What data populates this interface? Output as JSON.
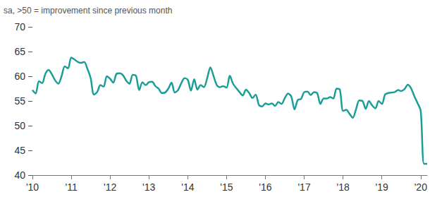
{
  "chart_data": {
    "type": "line",
    "subtitle": "sa, >50 = improvement since previous month",
    "categories": [
      "'10",
      null,
      null,
      null,
      null,
      null,
      null,
      null,
      null,
      null,
      null,
      null,
      "'11",
      null,
      null,
      null,
      null,
      null,
      null,
      null,
      null,
      null,
      null,
      null,
      "'12",
      null,
      null,
      null,
      null,
      null,
      null,
      null,
      null,
      null,
      null,
      null,
      "'13",
      null,
      null,
      null,
      null,
      null,
      null,
      null,
      null,
      null,
      null,
      null,
      "'14",
      null,
      null,
      null,
      null,
      null,
      null,
      null,
      null,
      null,
      null,
      null,
      "'15",
      null,
      null,
      null,
      null,
      null,
      null,
      null,
      null,
      null,
      null,
      null,
      "'16",
      null,
      null,
      null,
      null,
      null,
      null,
      null,
      null,
      null,
      null,
      null,
      "'17",
      null,
      null,
      null,
      null,
      null,
      null,
      null,
      null,
      null,
      null,
      null,
      "'18",
      null,
      null,
      null,
      null,
      null,
      null,
      null,
      null,
      null,
      null,
      null,
      "'19",
      null,
      null,
      null,
      null,
      null,
      null,
      null,
      null,
      null,
      null,
      null,
      "'20",
      null,
      null
    ],
    "values": [
      57.2,
      56.5,
      59.0,
      58.6,
      60.5,
      61.3,
      60.4,
      59.2,
      58.5,
      60.0,
      62.0,
      61.6,
      63.8,
      63.4,
      62.9,
      62.7,
      62.9,
      61.5,
      59.6,
      56.3,
      56.8,
      58.2,
      57.9,
      60.0,
      59.5,
      58.7,
      60.5,
      60.6,
      60.2,
      59.1,
      58.5,
      60.3,
      60.1,
      57.2,
      58.8,
      58.2,
      58.8,
      58.9,
      58.0,
      57.5,
      56.6,
      56.7,
      57.5,
      58.7,
      56.7,
      57.2,
      58.6,
      59.6,
      59.3,
      57.1,
      59.4,
      57.3,
      58.2,
      57.8,
      59.6,
      61.8,
      60.0,
      58.2,
      57.8,
      58.0,
      57.7,
      60.1,
      58.5,
      57.6,
      56.8,
      56.1,
      57.3,
      56.6,
      55.6,
      56.3,
      54.2,
      53.9,
      54.5,
      54.3,
      54.5,
      54.0,
      54.8,
      54.4,
      55.6,
      56.5,
      55.9,
      53.3,
      55.2,
      55.4,
      56.8,
      56.9,
      56.2,
      56.8,
      56.6,
      54.4,
      55.5,
      55.5,
      55.8,
      55.5,
      57.5,
      57.3,
      53.0,
      53.2,
      52.4,
      51.6,
      53.3,
      55.1,
      55.0,
      53.4,
      55.0,
      54.1,
      53.5,
      55.0,
      54.4,
      56.3,
      56.6,
      56.7,
      56.8,
      57.2,
      57.0,
      57.4,
      58.3,
      57.6,
      56.0,
      54.6,
      53.0,
      42.3,
      42.3
    ],
    "color": "#1a9e96",
    "ylim": [
      40,
      70
    ],
    "yticks": [
      40,
      45,
      50,
      55,
      60,
      65,
      70
    ],
    "grid": false
  }
}
